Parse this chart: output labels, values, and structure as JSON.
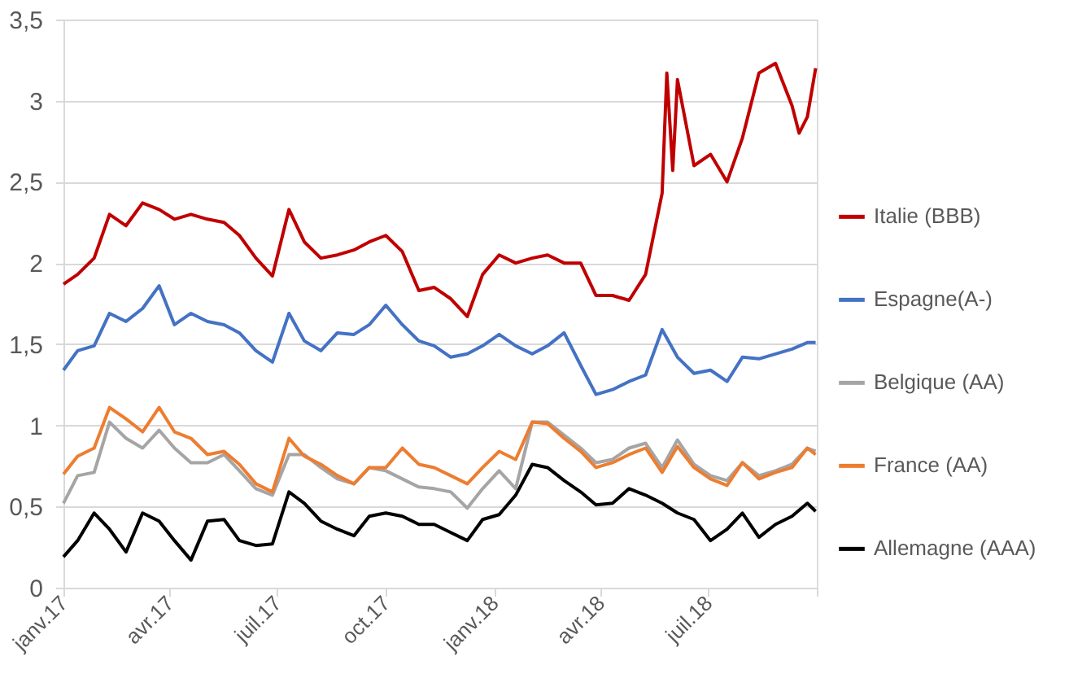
{
  "chart_data": {
    "type": "line",
    "x": [
      "2017-01-01",
      "2017-01-13",
      "2017-01-27",
      "2017-02-09",
      "2017-02-23",
      "2017-03-09",
      "2017-03-23",
      "2017-04-05",
      "2017-04-19",
      "2017-05-03",
      "2017-05-17",
      "2017-05-30",
      "2017-06-13",
      "2017-06-27",
      "2017-07-11",
      "2017-07-24",
      "2017-08-07",
      "2017-08-21",
      "2017-09-04",
      "2017-09-17",
      "2017-10-01",
      "2017-10-15",
      "2017-10-29",
      "2017-11-11",
      "2017-11-25",
      "2017-12-09",
      "2017-12-22",
      "2018-01-05",
      "2018-01-19",
      "2018-02-02",
      "2018-02-15",
      "2018-03-01",
      "2018-03-15",
      "2018-03-28",
      "2018-04-11",
      "2018-04-25",
      "2018-05-09",
      "2018-05-23",
      "2018-06-05",
      "2018-06-19",
      "2018-07-03",
      "2018-07-17",
      "2018-07-30",
      "2018-08-13",
      "2018-08-27",
      "2018-09-10",
      "2018-09-23",
      "2018-09-30"
    ],
    "series": [
      {
        "name": "Italie (BBB)",
        "color": "#c00000",
        "x": [
          "2017-01-01",
          "2017-01-13",
          "2017-01-27",
          "2017-02-09",
          "2017-02-23",
          "2017-03-09",
          "2017-03-23",
          "2017-04-05",
          "2017-04-19",
          "2017-05-03",
          "2017-05-17",
          "2017-05-30",
          "2017-06-13",
          "2017-06-27",
          "2017-07-11",
          "2017-07-24",
          "2017-08-07",
          "2017-08-21",
          "2017-09-04",
          "2017-09-17",
          "2017-10-01",
          "2017-10-15",
          "2017-10-29",
          "2017-11-11",
          "2017-11-25",
          "2017-12-09",
          "2017-12-22",
          "2018-01-05",
          "2018-01-19",
          "2018-02-02",
          "2018-02-15",
          "2018-03-01",
          "2018-03-15",
          "2018-03-28",
          "2018-04-11",
          "2018-04-25",
          "2018-05-09",
          "2018-05-23",
          "2018-05-27",
          "2018-06-01",
          "2018-06-05",
          "2018-06-19",
          "2018-07-03",
          "2018-07-17",
          "2018-07-30",
          "2018-08-13",
          "2018-08-27",
          "2018-09-10",
          "2018-09-16",
          "2018-09-23",
          "2018-09-30"
        ],
        "values": [
          1.87,
          1.93,
          2.03,
          2.3,
          2.23,
          2.37,
          2.33,
          2.27,
          2.3,
          2.27,
          2.25,
          2.17,
          2.03,
          1.92,
          2.33,
          2.13,
          2.03,
          2.05,
          2.08,
          2.13,
          2.17,
          2.07,
          1.83,
          1.85,
          1.78,
          1.67,
          1.93,
          2.05,
          2.0,
          2.03,
          2.05,
          2.0,
          2.0,
          1.8,
          1.8,
          1.77,
          1.93,
          2.43,
          3.17,
          2.57,
          3.13,
          2.6,
          2.67,
          2.5,
          2.77,
          3.17,
          3.23,
          2.97,
          2.8,
          2.9,
          3.2
        ]
      },
      {
        "name": "Espagne(A-)",
        "color": "#4472c4",
        "values": [
          1.34,
          1.46,
          1.49,
          1.69,
          1.64,
          1.72,
          1.86,
          1.62,
          1.69,
          1.64,
          1.62,
          1.57,
          1.46,
          1.39,
          1.69,
          1.52,
          1.46,
          1.57,
          1.56,
          1.62,
          1.74,
          1.62,
          1.52,
          1.49,
          1.42,
          1.44,
          1.49,
          1.56,
          1.49,
          1.44,
          1.49,
          1.57,
          1.37,
          1.19,
          1.22,
          1.27,
          1.31,
          1.59,
          1.42,
          1.32,
          1.34,
          1.27,
          1.42,
          1.41,
          1.44,
          1.47,
          1.51,
          1.51
        ]
      },
      {
        "name": "Belgique (AA)",
        "color": "#a5a5a5",
        "values": [
          0.52,
          0.69,
          0.71,
          1.02,
          0.92,
          0.86,
          0.97,
          0.86,
          0.77,
          0.77,
          0.82,
          0.72,
          0.61,
          0.57,
          0.82,
          0.82,
          0.74,
          0.67,
          0.64,
          0.74,
          0.72,
          0.67,
          0.62,
          0.61,
          0.59,
          0.49,
          0.61,
          0.72,
          0.61,
          1.02,
          1.02,
          0.94,
          0.86,
          0.77,
          0.79,
          0.86,
          0.89,
          0.74,
          0.91,
          0.76,
          0.69,
          0.66,
          0.77,
          0.69,
          0.72,
          0.76,
          0.86,
          0.84
        ]
      },
      {
        "name": "France (AA)",
        "color": "#ed7d31",
        "values": [
          0.7,
          0.81,
          0.86,
          1.11,
          1.04,
          0.96,
          1.11,
          0.96,
          0.92,
          0.82,
          0.84,
          0.76,
          0.64,
          0.59,
          0.92,
          0.81,
          0.76,
          0.69,
          0.64,
          0.74,
          0.74,
          0.86,
          0.76,
          0.74,
          0.69,
          0.64,
          0.74,
          0.84,
          0.79,
          1.02,
          1.01,
          0.92,
          0.84,
          0.74,
          0.77,
          0.82,
          0.86,
          0.71,
          0.87,
          0.74,
          0.67,
          0.63,
          0.77,
          0.67,
          0.71,
          0.74,
          0.86,
          0.82
        ]
      },
      {
        "name": "Allemagne (AAA)",
        "color": "#000000",
        "values": [
          0.19,
          0.29,
          0.46,
          0.36,
          0.22,
          0.46,
          0.41,
          0.29,
          0.17,
          0.41,
          0.42,
          0.29,
          0.26,
          0.27,
          0.59,
          0.52,
          0.41,
          0.36,
          0.32,
          0.44,
          0.46,
          0.44,
          0.39,
          0.39,
          0.34,
          0.29,
          0.42,
          0.45,
          0.57,
          0.76,
          0.74,
          0.66,
          0.59,
          0.51,
          0.52,
          0.61,
          0.57,
          0.52,
          0.46,
          0.42,
          0.29,
          0.36,
          0.46,
          0.31,
          0.39,
          0.44,
          0.52,
          0.47
        ]
      }
    ],
    "xlim": [
      "2017-01-01",
      "2018-10-01"
    ],
    "xticks": [
      {
        "value": "2017-01-01",
        "label": "janv.17"
      },
      {
        "value": "2017-04-01",
        "label": "avr.17"
      },
      {
        "value": "2017-07-01",
        "label": "juil.17"
      },
      {
        "value": "2017-10-01",
        "label": "oct.17"
      },
      {
        "value": "2018-01-01",
        "label": "janv.18"
      },
      {
        "value": "2018-04-01",
        "label": "avr.18"
      },
      {
        "value": "2018-07-01",
        "label": "juil.18"
      },
      {
        "value": "2018-10-01",
        "label": null
      }
    ],
    "ylim": [
      0,
      3.5
    ],
    "yticks": [
      {
        "value": 0,
        "label": "0"
      },
      {
        "value": 0.5,
        "label": "0,5"
      },
      {
        "value": 1,
        "label": "1"
      },
      {
        "value": 1.5,
        "label": "1,5"
      },
      {
        "value": 2,
        "label": "2"
      },
      {
        "value": 2.5,
        "label": "2,5"
      },
      {
        "value": 3,
        "label": "3"
      },
      {
        "value": 3.5,
        "label": "3,5"
      }
    ],
    "grid": "y",
    "legend": "right"
  }
}
